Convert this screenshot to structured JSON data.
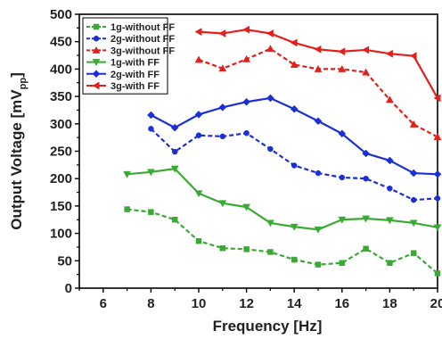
{
  "chart_data": {
    "type": "line",
    "xlabel": "Frequency [Hz]",
    "ylabel_main": "Output Voltage [mV",
    "ylabel_sub": "pp",
    "ylabel_end": "]",
    "xlim": [
      5,
      20
    ],
    "ylim": [
      0,
      500
    ],
    "xticks": [
      6,
      8,
      10,
      12,
      14,
      16,
      18,
      20
    ],
    "yticks": [
      0,
      50,
      100,
      150,
      200,
      250,
      300,
      350,
      400,
      450,
      500
    ],
    "legend_position": "top-left",
    "series": [
      {
        "name": "1g-without FF",
        "color": "#3aaa35",
        "dashed": true,
        "marker": "square",
        "x": [
          7,
          8,
          9,
          10,
          11,
          12,
          13,
          14,
          15,
          16,
          17,
          18,
          19,
          20
        ],
        "y": [
          144,
          139,
          125,
          86,
          73,
          71,
          66,
          52,
          43,
          46,
          72,
          46,
          64,
          27
        ]
      },
      {
        "name": "2g-without FF",
        "color": "#1c2fd6",
        "dashed": true,
        "marker": "circle",
        "x": [
          8,
          9,
          10,
          11,
          12,
          13,
          14,
          15,
          16,
          17,
          18,
          19,
          20
        ],
        "y": [
          291,
          249,
          279,
          277,
          283,
          254,
          224,
          210,
          202,
          200,
          182,
          161,
          164
        ]
      },
      {
        "name": "3g-without FF",
        "color": "#e3201b",
        "dashed": true,
        "marker": "triangle",
        "x": [
          10,
          11,
          12,
          13,
          14,
          15,
          16,
          17,
          18,
          19,
          20
        ],
        "y": [
          417,
          401,
          418,
          437,
          408,
          400,
          400,
          394,
          344,
          299,
          276
        ]
      },
      {
        "name": "1g-with FF",
        "color": "#3aaa35",
        "dashed": false,
        "marker": "triangle-down",
        "x": [
          7,
          8,
          9,
          10,
          11,
          12,
          13,
          14,
          15,
          16,
          17,
          18,
          19,
          20
        ],
        "y": [
          208,
          212,
          218,
          173,
          155,
          148,
          119,
          112,
          107,
          125,
          127,
          124,
          119,
          111
        ]
      },
      {
        "name": "2g-with FF",
        "color": "#1c2fd6",
        "dashed": false,
        "marker": "diamond",
        "x": [
          8,
          9,
          10,
          11,
          12,
          13,
          14,
          15,
          16,
          17,
          18,
          19,
          20
        ],
        "y": [
          316,
          293,
          317,
          330,
          340,
          347,
          327,
          305,
          282,
          246,
          233,
          210,
          208
        ]
      },
      {
        "name": "3g-with FF",
        "color": "#e3201b",
        "dashed": false,
        "marker": "triangle-left",
        "x": [
          10,
          11,
          12,
          13,
          14,
          15,
          16,
          17,
          18,
          19,
          20
        ],
        "y": [
          468,
          465,
          472,
          465,
          448,
          436,
          432,
          435,
          428,
          424,
          347
        ]
      }
    ]
  }
}
